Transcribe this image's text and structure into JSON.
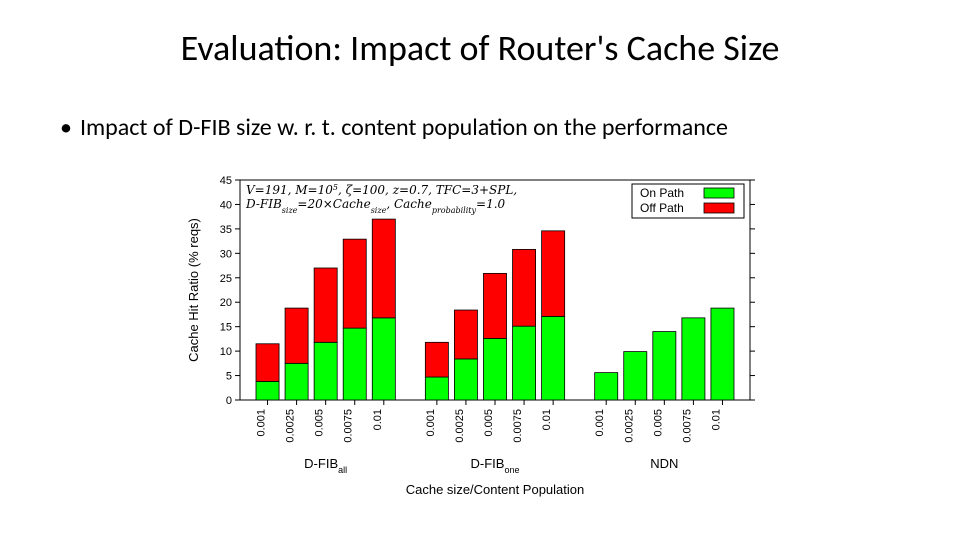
{
  "title": "Evaluation: Impact of Router's Cache Size",
  "bullet": "Impact of D-FIB size w. r. t. content population on the performance",
  "chart": {
    "type": "bar-stacked-grouped",
    "background_color": "#ffffff",
    "axis_color": "#000000",
    "on_path_color": "#00ff00",
    "off_path_color": "#ff0000",
    "bar_border_color": "#000000",
    "ylabel": "Cache Hit Ratio (% reqs)",
    "xlabel": "Cache size/Content Population",
    "ylabel_fontsize": 13,
    "xlabel_fontsize": 13,
    "tick_fontsize": 11,
    "ylim": [
      0,
      45
    ],
    "ytick_step": 5,
    "yticks": [
      0,
      5,
      10,
      15,
      20,
      25,
      30,
      35,
      40,
      45
    ],
    "param_line1": "V=191, M=10⁵, ζ=100, z=0.7, TFC=3+SPL,",
    "param_line2": "D-FIBₛᵢₓₑ=20×Cacheₛᵢₓₑ, Cacheₚᵣₒᵦₐᵦᵢₗᵢₜᵧ=1.0",
    "param_line1_plain": "V=191, M=10^5, zeta=100, z=0.7, TFC=3+SPL,",
    "param_line2_plain": "D-FIB_size=20*Cache_size, Cache_probability=1.0",
    "legend": {
      "items": [
        {
          "label": "On Path",
          "color": "#00ff00"
        },
        {
          "label": "Off Path",
          "color": "#ff0000"
        }
      ]
    },
    "groups": [
      {
        "label": "D-FIB",
        "label_sub": "all",
        "bars": [
          {
            "x": "0.001",
            "on_path": 3.8,
            "off_path": 7.7
          },
          {
            "x": "0.0025",
            "on_path": 7.5,
            "off_path": 11.3
          },
          {
            "x": "0.005",
            "on_path": 11.8,
            "off_path": 15.2
          },
          {
            "x": "0.0075",
            "on_path": 14.7,
            "off_path": 18.2
          },
          {
            "x": "0.01",
            "on_path": 16.8,
            "off_path": 20.2
          }
        ]
      },
      {
        "label": "D-FIB",
        "label_sub": "one",
        "bars": [
          {
            "x": "0.001",
            "on_path": 4.7,
            "off_path": 7.1
          },
          {
            "x": "0.0025",
            "on_path": 8.4,
            "off_path": 10.0
          },
          {
            "x": "0.005",
            "on_path": 12.6,
            "off_path": 13.3
          },
          {
            "x": "0.0075",
            "on_path": 15.1,
            "off_path": 15.7
          },
          {
            "x": "0.01",
            "on_path": 17.1,
            "off_path": 17.5
          }
        ]
      },
      {
        "label": "NDN",
        "label_sub": "",
        "bars": [
          {
            "x": "0.001",
            "on_path": 5.6,
            "off_path": 0.0
          },
          {
            "x": "0.0025",
            "on_path": 9.9,
            "off_path": 0.0
          },
          {
            "x": "0.005",
            "on_path": 14.0,
            "off_path": 0.0
          },
          {
            "x": "0.0075",
            "on_path": 16.8,
            "off_path": 0.0
          },
          {
            "x": "0.01",
            "on_path": 18.8,
            "off_path": 0.0
          }
        ]
      }
    ]
  }
}
